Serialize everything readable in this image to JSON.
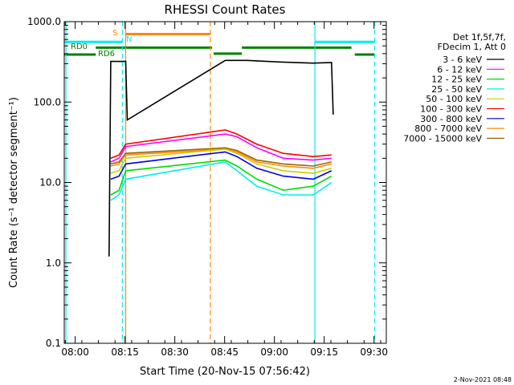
{
  "chart_data": {
    "type": "line",
    "title": "RHESSI Count Rates",
    "xlabel": "Start Time (20-Nov-15 07:56:42)",
    "ylabel": "Count Rate (s⁻¹ detector segment⁻¹)",
    "yscale": "log",
    "ylim": [
      0.1,
      1000
    ],
    "xlim_minutes_after_start": [
      0,
      97
    ],
    "x_tick_labels": [
      "08:00",
      "08:15",
      "08:30",
      "08:45",
      "09:00",
      "09:15",
      "09:30"
    ],
    "x_tick_minutes_after_start": [
      3.3,
      18.3,
      33.3,
      48.3,
      63.3,
      78.3,
      93.3
    ],
    "y_tick_labels": [
      "0.1",
      "1.0",
      "10.0",
      "100.0",
      "1000.0"
    ],
    "y_tick_values": [
      0.1,
      1,
      10,
      100,
      1000
    ],
    "grid": false,
    "legend": {
      "placement": "top-right",
      "header": [
        "Det 1f,5f,7f,",
        "FDecim 1, Att 0"
      ]
    },
    "series": [
      {
        "name": "3 - 6 keV",
        "color": "#000000",
        "x": [
          13.5,
          14,
          18.5,
          19,
          48.5,
          55,
          65,
          75,
          80.5,
          81
        ],
        "y": [
          1.2,
          320,
          320,
          60,
          330,
          330,
          315,
          305,
          310,
          70
        ]
      },
      {
        "name": "6 - 12 keV",
        "color": "#ff00ff",
        "x": [
          14,
          16.5,
          18.5,
          48.5,
          52,
          58,
          66,
          75,
          80.5
        ],
        "y": [
          18,
          20,
          28,
          40,
          37,
          27,
          20,
          19,
          20
        ]
      },
      {
        "name": "12 - 25 keV",
        "color": "#00dd00",
        "x": [
          14,
          16.5,
          18.5,
          48.5,
          52,
          58,
          66,
          75,
          80.5
        ],
        "y": [
          7,
          8,
          14,
          19,
          16,
          11,
          8,
          9,
          12
        ]
      },
      {
        "name": "25 - 50 keV",
        "color": "#00eeee",
        "x": [
          14,
          16.5,
          18.5,
          48.5,
          52,
          58,
          66,
          75,
          80.5
        ],
        "y": [
          6,
          7,
          11,
          18,
          14,
          9,
          7,
          7,
          10
        ]
      },
      {
        "name": "50 - 100 keV",
        "color": "#cccc00",
        "x": [
          14,
          16.5,
          18.5,
          48.5,
          52,
          58,
          66,
          75,
          80.5
        ],
        "y": [
          13,
          14,
          20,
          26,
          23,
          17,
          14,
          13,
          15
        ]
      },
      {
        "name": "100 - 300 keV",
        "color": "#ff0000",
        "x": [
          14,
          16.5,
          18.5,
          48.5,
          52,
          58,
          66,
          75,
          80.5
        ],
        "y": [
          20,
          22,
          30,
          45,
          40,
          30,
          23,
          21,
          22
        ]
      },
      {
        "name": "300 - 800 keV",
        "color": "#0000ee",
        "x": [
          14,
          16.5,
          18.5,
          48.5,
          52,
          58,
          66,
          75,
          80.5
        ],
        "y": [
          11,
          12,
          17,
          24,
          21,
          15,
          12,
          11,
          14
        ]
      },
      {
        "name": "800 - 7000 keV",
        "color": "#ff8800",
        "x": [
          14,
          16.5,
          18.5,
          48.5,
          52,
          58,
          66,
          75,
          80.5
        ],
        "y": [
          16,
          17,
          22,
          26,
          24,
          18,
          16,
          15,
          17
        ]
      },
      {
        "name": "7000 - 15000 keV",
        "color": "#996600",
        "x": [
          14,
          16.5,
          18.5,
          48.5,
          52,
          58,
          66,
          75,
          80.5
        ],
        "y": [
          17,
          18,
          23,
          27,
          25,
          19,
          17,
          16,
          18
        ]
      }
    ],
    "annotations": [
      {
        "text": "S",
        "color": "#ff8800"
      },
      {
        "text": "N",
        "color": "#00eeee"
      },
      {
        "text": "RD0",
        "color": "#008000"
      },
      {
        "text": "RD6",
        "color": "#008000"
      }
    ],
    "footer": "2-Nov-2021 08:48"
  }
}
